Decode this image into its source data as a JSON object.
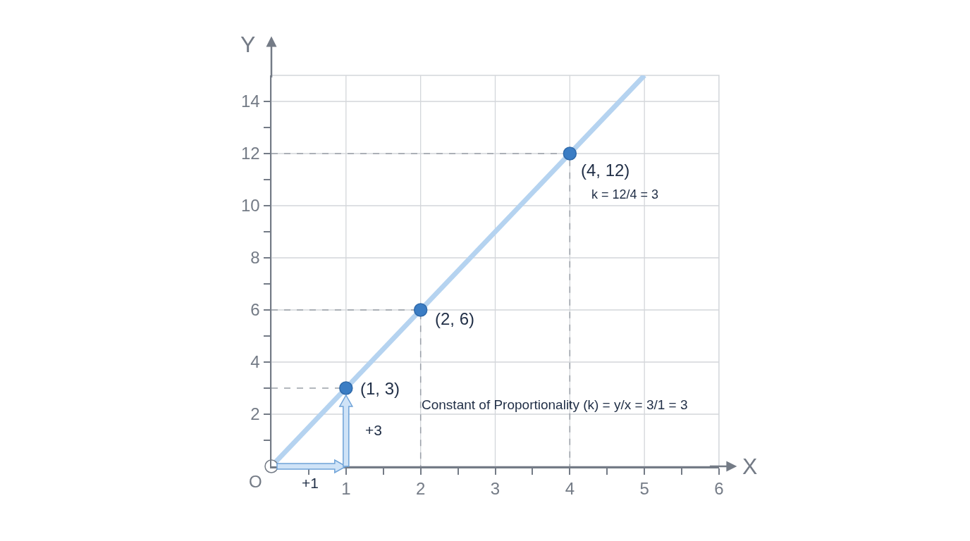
{
  "chart_data": {
    "type": "line",
    "xlabel": "X",
    "ylabel": "Y",
    "xlim": [
      0,
      6
    ],
    "ylim": [
      0,
      15
    ],
    "xticks": [
      {
        "value": 0.5,
        "label": null
      },
      1,
      {
        "value": 1.5,
        "label": null
      },
      2,
      {
        "value": 2.5,
        "label": null
      },
      3,
      {
        "value": 3.5,
        "label": null
      },
      4,
      {
        "value": 4.5,
        "label": null
      },
      5,
      {
        "value": 5.5,
        "label": null
      },
      6
    ],
    "yticks": [
      {
        "value": 1,
        "label": null
      },
      2,
      {
        "value": 3,
        "label": null
      },
      4,
      {
        "value": 5,
        "label": null
      },
      6,
      {
        "value": 7,
        "label": null
      },
      8,
      {
        "value": 9,
        "label": null
      },
      10,
      {
        "value": 11,
        "label": null
      },
      12,
      {
        "value": 13,
        "label": null
      },
      14
    ],
    "grid": true,
    "series": [
      {
        "type": "line",
        "x": [
          0,
          5
        ],
        "values": [
          0,
          15
        ],
        "color": "#b5d3f0",
        "marker": "none",
        "line_style": "solid"
      },
      {
        "type": "line",
        "x": [
          0,
          1
        ],
        "values": [
          3,
          3
        ],
        "color": "#9aa0a8",
        "marker": "none",
        "line_style": "dashed"
      },
      {
        "type": "line",
        "x": [
          0,
          2,
          2
        ],
        "values": [
          6,
          6,
          0
        ],
        "color": "#9aa0a8",
        "marker": "none",
        "line_style": "dashed"
      },
      {
        "type": "line",
        "x": [
          0,
          4,
          4
        ],
        "values": [
          12,
          12,
          0
        ],
        "color": "#9aa0a8",
        "marker": "none",
        "line_style": "dashed"
      },
      {
        "type": "scatter",
        "x": [
          1,
          2,
          4
        ],
        "values": [
          3,
          6,
          12
        ],
        "color": "#3b7dc4",
        "marker": "circle"
      },
      {
        "type": "scatter",
        "x": [
          0
        ],
        "values": [
          0
        ],
        "color": "#ffffff",
        "marker": "circle"
      }
    ],
    "annotations": [
      {
        "text": "(1, 3)",
        "x": 1,
        "y": 3
      },
      {
        "text": "(2, 6)",
        "x": 2,
        "y": 6
      },
      {
        "text": "(4, 12)",
        "x": 4,
        "y": 12
      },
      {
        "text": "O",
        "x": 0,
        "y": 0
      },
      "k = 12/4 = 3",
      "+1",
      "+3",
      "Constant of Proportionality (k) = y/x = 3/1 = 3"
    ]
  }
}
